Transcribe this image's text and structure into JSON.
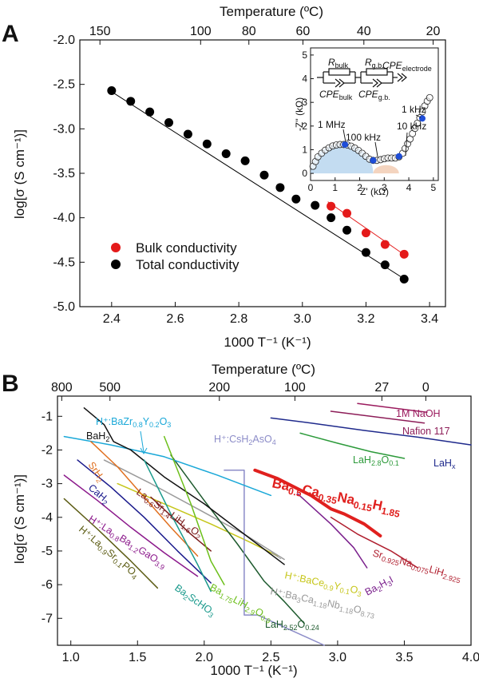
{
  "chart_data": [
    {
      "panel": "A",
      "type": "scatter",
      "xlabel": "1000 T⁻¹ (K⁻¹)",
      "ylabel": "log[σ (S cm⁻¹)]",
      "top_axis_label": "Temperature (ºC)",
      "top_ticks": [
        "150",
        "100",
        "80",
        "60",
        "40",
        "20"
      ],
      "top_tick_values": [
        150,
        100,
        80,
        60,
        40,
        20
      ],
      "xlim": [
        2.3,
        3.45
      ],
      "ylim": [
        -5.0,
        -2.0
      ],
      "xticks": [
        "2.4",
        "2.6",
        "2.8",
        "3.0",
        "3.2",
        "3.4"
      ],
      "yticks": [
        "-2.0",
        "-2.5",
        "-3.0",
        "-3.5",
        "-4.0",
        "-4.5",
        "-5.0"
      ],
      "legend_position": "lower-left",
      "series": [
        {
          "name": "Total conductivity",
          "color": "#000000",
          "x": [
            2.4,
            2.46,
            2.52,
            2.58,
            2.64,
            2.7,
            2.76,
            2.82,
            2.88,
            2.93,
            2.98,
            3.04,
            3.09,
            3.14,
            3.2,
            3.26,
            3.32
          ],
          "y": [
            -2.57,
            -2.69,
            -2.81,
            -2.93,
            -3.06,
            -3.17,
            -3.28,
            -3.36,
            -3.52,
            -3.66,
            -3.79,
            -3.86,
            -4.0,
            -4.14,
            -4.39,
            -4.53,
            -4.69
          ],
          "fit_line": {
            "x": [
              2.39,
              3.33
            ],
            "y": [
              -2.56,
              -4.71
            ]
          }
        },
        {
          "name": "Bulk conductivity",
          "color": "#e41a1a",
          "x": [
            3.09,
            3.14,
            3.2,
            3.26,
            3.32
          ],
          "y": [
            -3.87,
            -3.95,
            -4.17,
            -4.3,
            -4.41
          ],
          "fit_line": {
            "x": [
              3.08,
              3.33
            ],
            "y": [
              -3.82,
              -4.44
            ]
          }
        }
      ],
      "inset": {
        "type": "scatter",
        "xlabel": "Z' (kΩ)",
        "ylabel": "-Z'' (kΩ)",
        "xlim": [
          0,
          5.2
        ],
        "ylim": [
          -0.3,
          5.3
        ],
        "xticks": [
          "0",
          "1",
          "2",
          "3",
          "4",
          "5"
        ],
        "yticks": [
          "0",
          "1",
          "2",
          "3",
          "4",
          "5"
        ],
        "circuit_labels": {
          "r_bulk": "R",
          "r_bulk_sub": "bulk",
          "r_gb": "R",
          "r_gb_sub": "g.b.",
          "cpe_bulk": "CPE",
          "cpe_bulk_sub": "bulk",
          "cpe_gb": "CPE",
          "cpe_gb_sub": "g.b.",
          "cpe_el": "CPE",
          "cpe_el_sub": "electrode"
        },
        "annotations": [
          "1 MHz",
          "100 kHz",
          "10 kHz",
          "1 kHz"
        ],
        "open_points": {
          "x": [
            0.1,
            0.2,
            0.3,
            0.45,
            0.6,
            0.75,
            0.9,
            1.05,
            1.2,
            1.35,
            1.5,
            1.65,
            1.8,
            1.95,
            2.1,
            2.25,
            2.4,
            2.55,
            2.7,
            2.85,
            3.0,
            3.15,
            3.3,
            3.45,
            3.6,
            3.75,
            3.85,
            3.95,
            4.05,
            4.15,
            4.25,
            4.35,
            4.45,
            4.55,
            4.65,
            4.75,
            4.85
          ],
          "y": [
            0.3,
            0.5,
            0.7,
            0.85,
            0.98,
            1.08,
            1.16,
            1.2,
            1.22,
            1.22,
            1.2,
            1.15,
            1.07,
            0.97,
            0.85,
            0.72,
            0.6,
            0.55,
            0.55,
            0.58,
            0.62,
            0.65,
            0.65,
            0.65,
            0.7,
            0.85,
            1.05,
            1.25,
            1.45,
            1.68,
            1.9,
            2.12,
            2.35,
            2.6,
            2.85,
            3.05,
            3.2
          ]
        },
        "marked_points": {
          "x": [
            1.4,
            2.55,
            3.6,
            4.55
          ],
          "y": [
            1.22,
            0.55,
            0.72,
            2.32
          ]
        }
      }
    },
    {
      "panel": "B",
      "type": "line",
      "xlabel": "1000 T⁻¹ (K⁻¹)",
      "ylabel": "log[σ (S cm⁻¹)]",
      "top_axis_label": "Temperature (ºC)",
      "top_ticks": [
        "800",
        "500",
        "200",
        "100",
        "27",
        "0"
      ],
      "top_tick_values": [
        800,
        500,
        200,
        100,
        27,
        0
      ],
      "xlim": [
        0.9,
        4.0
      ],
      "ylim": [
        -7.8,
        -0.4
      ],
      "xticks": [
        "1.0",
        "1.5",
        "2.0",
        "2.5",
        "3.0",
        "3.5",
        "4.0"
      ],
      "yticks": [
        "-1",
        "-2",
        "-3",
        "-4",
        "-5",
        "-6",
        "-7"
      ],
      "series": [
        {
          "key": "naoh",
          "name": "1M NaOH",
          "color": "#9b1b5e",
          "x": [
            3.15,
            3.67
          ],
          "y": [
            -0.62,
            -0.88
          ]
        },
        {
          "key": "nafion",
          "name": "Nafion 117",
          "color": "#8d1d58",
          "x": [
            2.95,
            3.65
          ],
          "y": [
            -0.85,
            -1.2
          ]
        },
        {
          "key": "lahx",
          "name": "LaH",
          "name_sub": "x",
          "color": "#1f2a8c",
          "x": [
            2.5,
            2.8,
            3.2,
            3.6,
            4.0
          ],
          "y": [
            -1.05,
            -1.2,
            -1.42,
            -1.62,
            -1.85
          ]
        },
        {
          "key": "lah28",
          "name": "LaH",
          "name_sub": "2.8",
          "name_suffix": "O",
          "name_sub2": "0.1",
          "color": "#2c9a3a",
          "x": [
            2.72,
            3.0,
            3.25,
            3.5
          ],
          "y": [
            -1.5,
            -1.8,
            -2.05,
            -2.25
          ]
        },
        {
          "key": "bacana",
          "name": "Ba",
          "color": "#e0201e",
          "x": [
            2.38,
            2.55,
            2.8,
            2.95,
            3.05,
            3.2,
            3.32
          ],
          "y": [
            -2.6,
            -2.85,
            -3.35,
            -3.75,
            -3.9,
            -4.2,
            -4.55
          ]
        },
        {
          "key": "srna",
          "name": "Sr",
          "color": "#b01e2e",
          "x": [
            2.95,
            3.15,
            3.4,
            3.6
          ],
          "y": [
            -4.0,
            -4.5,
            -5.0,
            -5.5
          ]
        },
        {
          "key": "ba2h3i",
          "name": "Ba",
          "name_sub": "2",
          "name_suffix": "H",
          "name_sub2": "3",
          "name_suffix2": "I",
          "color": "#7a1f8c",
          "x": [
            2.7,
            2.95,
            3.12,
            3.22
          ],
          "y": [
            -3.3,
            -4.2,
            -4.9,
            -5.5
          ]
        },
        {
          "key": "bacey",
          "name": "H⁺:BaCe",
          "color": "#c6c61a",
          "x": [
            1.35,
            1.7,
            2.05,
            2.35,
            2.55
          ],
          "y": [
            -3.0,
            -3.6,
            -4.2,
            -4.75,
            -5.15
          ]
        },
        {
          "key": "bacanb",
          "name": "H⁺:Ba",
          "color": "#9a9a9a",
          "x": [
            1.25,
            1.6,
            1.95,
            2.3,
            2.6
          ],
          "y": [
            -2.3,
            -3.0,
            -3.75,
            -4.5,
            -5.25
          ]
        },
        {
          "key": "lah252",
          "name": "LaH",
          "color": "#1e5a2e",
          "x": [
            1.75,
            2.0,
            2.25,
            2.45,
            2.6,
            2.75
          ],
          "y": [
            -2.15,
            -3.5,
            -4.8,
            -5.9,
            -6.5,
            -7.15
          ]
        },
        {
          "key": "cshaso",
          "name": "H⁺:CsH",
          "color": "#8c8cc8",
          "x": [
            2.15,
            2.3,
            2.3,
            2.4,
            2.9
          ],
          "y": [
            -2.6,
            -2.6,
            -6.9,
            -6.9,
            -7.8
          ]
        },
        {
          "key": "bazry",
          "name": "H⁺:BaZr",
          "color": "#1aa8d8",
          "x": [
            0.95,
            1.3,
            1.7,
            2.1,
            2.5
          ],
          "y": [
            -1.6,
            -1.85,
            -2.2,
            -2.75,
            -3.35
          ]
        },
        {
          "key": "bah2",
          "name": "BaH",
          "name_sub": "2",
          "color": "#111111",
          "x": [
            1.1,
            1.25,
            1.32,
            1.45,
            1.7,
            2.0,
            2.3,
            2.6
          ],
          "y": [
            -0.75,
            -1.25,
            -1.75,
            -2.0,
            -2.8,
            -3.6,
            -4.5,
            -5.4
          ]
        },
        {
          "key": "srh2",
          "name": "SrH",
          "name_sub": "2",
          "color": "#e07020",
          "x": [
            1.15,
            1.35,
            1.55,
            1.75,
            1.95
          ],
          "y": [
            -1.75,
            -2.5,
            -3.4,
            -4.3,
            -5.15
          ]
        },
        {
          "key": "cah2",
          "name": "CaH",
          "name_sub": "2",
          "color": "#1a1a8c",
          "x": [
            1.05,
            1.3,
            1.55,
            1.8,
            2.05
          ],
          "y": [
            -2.3,
            -3.1,
            -4.0,
            -5.0,
            -5.95
          ]
        },
        {
          "key": "lasrlih",
          "name": "La",
          "color": "#7a1a1a",
          "x": [
            1.6,
            1.75,
            1.9,
            2.05
          ],
          "y": [
            -3.4,
            -3.95,
            -4.5,
            -5.0
          ]
        },
        {
          "key": "labaga",
          "name": "H⁺:La",
          "color": "#8c1a8c",
          "x": [
            0.95,
            1.2,
            1.45,
            1.7,
            1.95
          ],
          "y": [
            -2.75,
            -3.5,
            -4.3,
            -5.05,
            -5.75
          ]
        },
        {
          "key": "lasrpo",
          "name": "H⁺:La",
          "color": "#5c5c14",
          "x": [
            0.95,
            1.2,
            1.45,
            1.65
          ],
          "y": [
            -3.45,
            -4.35,
            -5.3,
            -6.1
          ]
        },
        {
          "key": "ba2sc",
          "name": "Ba",
          "name_sub": "2",
          "name_suffix": "ScHO",
          "name_sub2": "3",
          "color": "#1a9a8c",
          "x": [
            1.55,
            1.75,
            1.95,
            2.05
          ],
          "y": [
            -2.3,
            -3.9,
            -5.4,
            -6.2
          ]
        },
        {
          "key": "ba175",
          "name": "Ba",
          "color": "#6cbf1a",
          "x": [
            1.7,
            1.9,
            2.05,
            2.15
          ],
          "y": [
            -1.6,
            -3.6,
            -5.3,
            -6.0
          ]
        }
      ],
      "text_labels": {
        "bazry": {
          "a": "H⁺:BaZr",
          "s1": "0.8",
          "b": "Y",
          "s2": "0.2",
          "c": "O",
          "s3": "3"
        },
        "bacana": {
          "a": "Ba",
          "s1": "0.5",
          "b": "Ca",
          "s2": "0.35",
          "c": "Na",
          "s3": "0.15",
          "d": "H",
          "s4": "1.85"
        },
        "srna": {
          "a": "Sr",
          "s1": "0.925",
          "b": "Na",
          "s2": "0.075",
          "c": "LiH",
          "s3": "2.925"
        },
        "bacey": {
          "a": "H⁺:BaCe",
          "s1": "0.9",
          "b": "Y",
          "s2": "0.1",
          "c": "O",
          "s3": "3"
        },
        "bacanb": {
          "a": "H⁺:Ba",
          "s1": "3",
          "b": "Ca",
          "s2": "1.18",
          "c": "Nb",
          "s3": "1.18",
          "d": "O",
          "s4": "8.73"
        },
        "lah252": {
          "a": "LaH",
          "s1": "2.52",
          "b": "O",
          "s2": "0.24"
        },
        "cshaso": {
          "a": "H⁺:CsH",
          "s1": "2",
          "b": "AsO",
          "s2": "4"
        },
        "lasrlih": {
          "a": "La",
          "s1": "0.6",
          "b": "Sr",
          "s2": "1.4",
          "c": "LiH",
          "s3": "1.6",
          "d": "O",
          "s4": "2"
        },
        "labaga": {
          "a": "H⁺:La",
          "s1": "0.8",
          "b": "Ba",
          "s2": "1.2",
          "c": "GaO",
          "s3": "3.9"
        },
        "lasrpo": {
          "a": "H⁺:La",
          "s1": "0.9",
          "b": "Sr",
          "s2": "0.1",
          "c": "PO",
          "s3": "4"
        },
        "ba175": {
          "a": "Ba",
          "s1": "1.75",
          "b": "LiH",
          "s2": "2.9",
          "c": "O",
          "s3": "0.9"
        }
      }
    }
  ]
}
